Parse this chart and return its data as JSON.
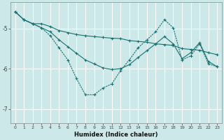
{
  "xlabel": "Humidex (Indice chaleur)",
  "background_color": "#cce8e8",
  "grid_color": "#ffffff",
  "line_color": "#1a7070",
  "xlim": [
    -0.5,
    23.5
  ],
  "ylim": [
    -7.35,
    -4.35
  ],
  "yticks": [
    -7,
    -6,
    -5
  ],
  "xticks": [
    0,
    1,
    2,
    3,
    4,
    5,
    6,
    7,
    8,
    9,
    10,
    11,
    12,
    13,
    14,
    15,
    16,
    17,
    18,
    19,
    20,
    21,
    22,
    23
  ],
  "series1_x": [
    0,
    1,
    2,
    3,
    4,
    5,
    6,
    7,
    8,
    9,
    10,
    11,
    12,
    13,
    14,
    15,
    16,
    17,
    18,
    19,
    20,
    21,
    22,
    23
  ],
  "series1_y": [
    -4.58,
    -4.78,
    -4.88,
    -4.88,
    -4.95,
    -5.05,
    -5.1,
    -5.15,
    -5.18,
    -5.2,
    -5.22,
    -5.24,
    -5.25,
    -5.3,
    -5.32,
    -5.34,
    -5.38,
    -5.4,
    -5.42,
    -5.5,
    -5.52,
    -5.54,
    -5.6,
    -5.65
  ],
  "series2_x": [
    0,
    1,
    2,
    3,
    4,
    5,
    6,
    7,
    8,
    9,
    10,
    11,
    12,
    13,
    14,
    15,
    16,
    17,
    18,
    19,
    20,
    21,
    22,
    23
  ],
  "series2_y": [
    -4.58,
    -4.78,
    -4.88,
    -4.98,
    -5.18,
    -5.48,
    -5.78,
    -6.25,
    -6.65,
    -6.65,
    -6.48,
    -6.38,
    -6.05,
    -5.78,
    -5.48,
    -5.28,
    -5.08,
    -4.78,
    -4.98,
    -5.78,
    -5.68,
    -5.38,
    -5.88,
    -5.95
  ],
  "series3_x": [
    0,
    1,
    2,
    3,
    4,
    5,
    6,
    7,
    8,
    9,
    10,
    11,
    12,
    13,
    14,
    15,
    16,
    17,
    18,
    19,
    20,
    21,
    22,
    23
  ],
  "series3_y": [
    -4.58,
    -4.78,
    -4.88,
    -4.98,
    -5.08,
    -5.28,
    -5.45,
    -5.62,
    -5.78,
    -5.88,
    -5.98,
    -6.02,
    -6.0,
    -5.9,
    -5.72,
    -5.55,
    -5.38,
    -5.2,
    -5.38,
    -5.75,
    -5.6,
    -5.35,
    -5.82,
    -5.95
  ]
}
